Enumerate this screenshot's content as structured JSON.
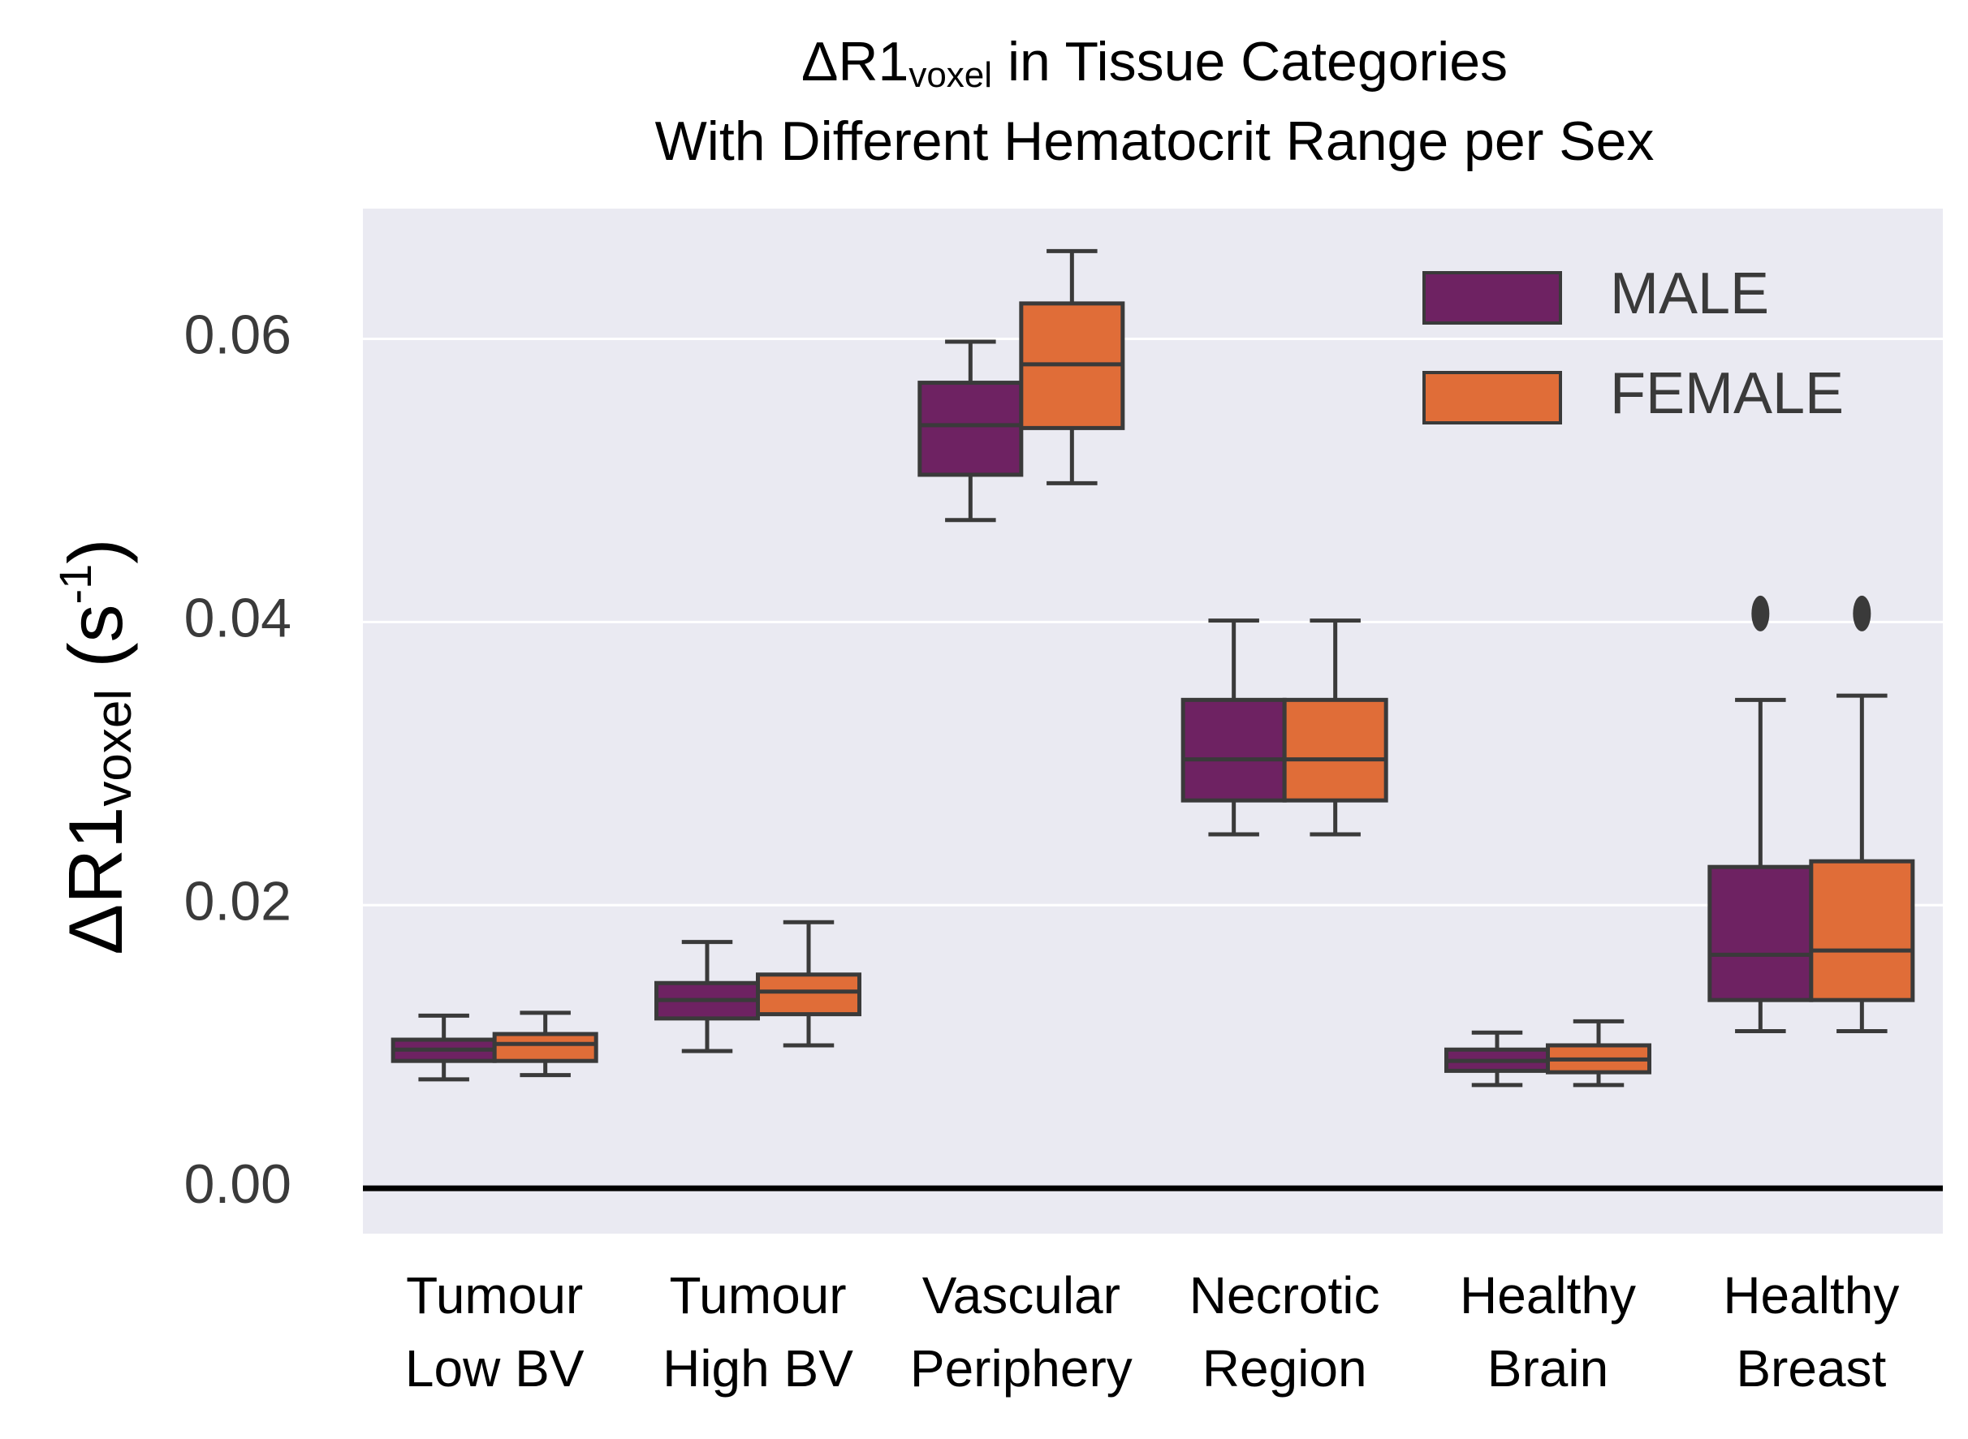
{
  "chart_data": {
    "type": "box",
    "title": [
      "ΔR1",
      "voxel",
      " in Tissue Categories"
    ],
    "subtitle": "With Different Hematocrit Range per Sex",
    "ylabel": [
      "ΔR1",
      "voxel",
      " (s",
      "-1",
      ")"
    ],
    "categories": [
      [
        "Tumour",
        "Low BV"
      ],
      [
        "Tumour",
        "High BV"
      ],
      [
        "Vascular",
        "Periphery"
      ],
      [
        "Necrotic",
        "Region"
      ],
      [
        "Healthy",
        "Brain"
      ],
      [
        "Healthy",
        "Breast"
      ]
    ],
    "ylim": [
      -0.0032,
      0.0692
    ],
    "yticks": [
      {
        "value": 0,
        "label": "0.00"
      },
      0.02,
      0.04,
      0.06
    ],
    "grid": true,
    "hline": 0,
    "legend": "upper right",
    "series": [
      {
        "name": "MALE",
        "color": "#6e2262",
        "whislo": [
          0.0077,
          0.0097,
          0.0472,
          0.025,
          0.0073,
          0.0111
        ],
        "q1": [
          0.009,
          0.012,
          0.0504,
          0.0274,
          0.0083,
          0.0133
        ],
        "median": [
          0.0098,
          0.0133,
          0.0539,
          0.0303,
          0.009,
          0.0165
        ],
        "q3": [
          0.0105,
          0.0145,
          0.0569,
          0.0345,
          0.0098,
          0.0227
        ],
        "whishi": [
          0.0122,
          0.0174,
          0.0598,
          0.0401,
          0.011,
          0.0345
        ],
        "fliers": [
          [],
          [],
          [],
          [],
          [],
          [
            0.0406
          ]
        ]
      },
      {
        "name": "FEMALE",
        "color": "#e06d38",
        "whislo": [
          0.008,
          0.0101,
          0.0498,
          0.025,
          0.0073,
          0.0111
        ],
        "q1": [
          0.009,
          0.0123,
          0.0537,
          0.0274,
          0.0082,
          0.0133
        ],
        "median": [
          0.0102,
          0.0139,
          0.0582,
          0.0303,
          0.0091,
          0.0168
        ],
        "q3": [
          0.0109,
          0.0151,
          0.0625,
          0.0345,
          0.0101,
          0.0231
        ],
        "whishi": [
          0.0124,
          0.0188,
          0.0662,
          0.0401,
          0.0118,
          0.0348
        ],
        "fliers": [
          [],
          [],
          [],
          [],
          [],
          [
            0.0406
          ]
        ]
      }
    ]
  }
}
